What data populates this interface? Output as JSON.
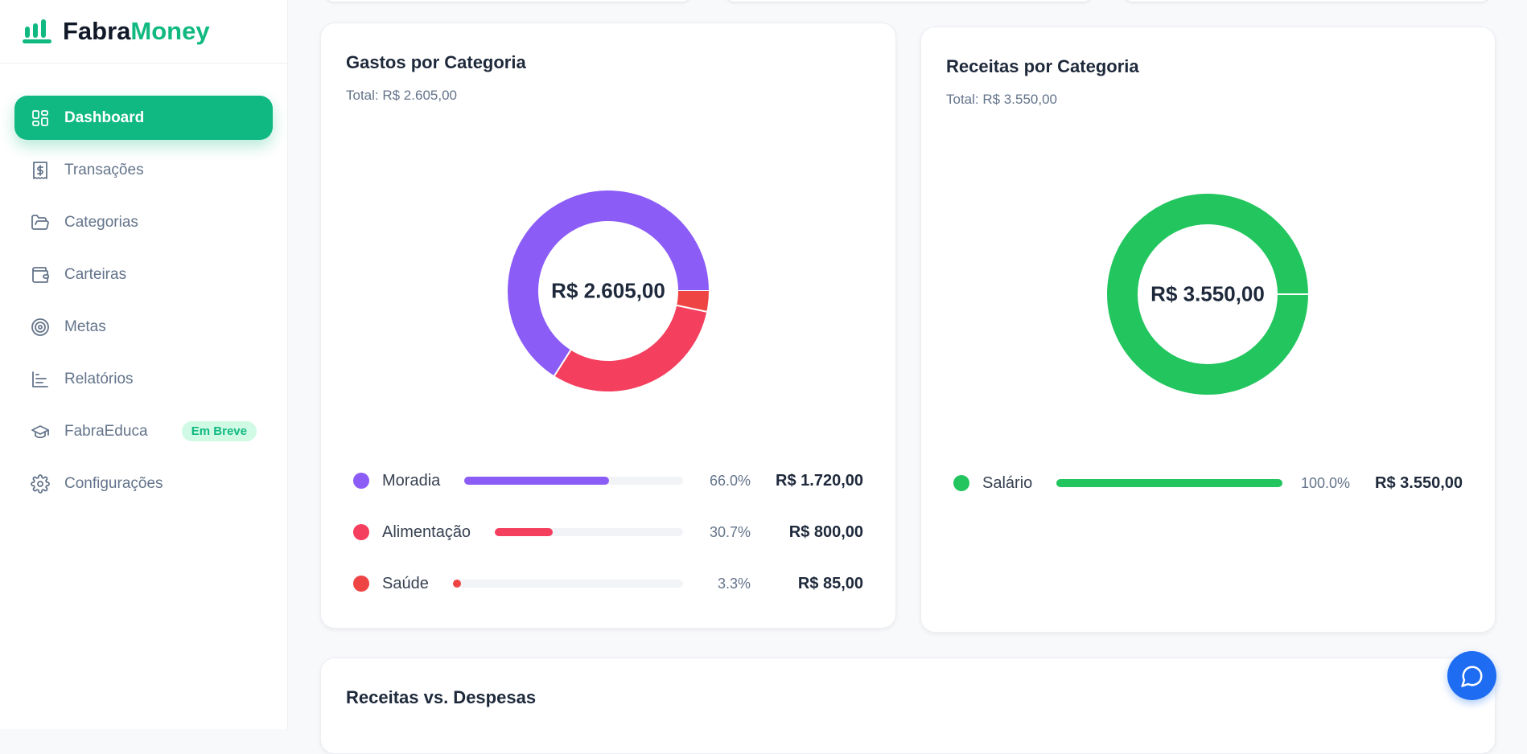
{
  "brand": {
    "part1": "Fabra",
    "part2": "Money",
    "accent": "#10b981"
  },
  "sidebar": {
    "items": [
      {
        "label": "Dashboard",
        "icon": "dashboard-icon",
        "active": true
      },
      {
        "label": "Transações",
        "icon": "receipt-dollar-icon"
      },
      {
        "label": "Categorias",
        "icon": "folder-open-icon"
      },
      {
        "label": "Carteiras",
        "icon": "wallet-icon"
      },
      {
        "label": "Metas",
        "icon": "target-icon"
      },
      {
        "label": "Relatórios",
        "icon": "bar-chart-icon"
      },
      {
        "label": "FabraEduca",
        "icon": "graduation-cap-icon",
        "badge": "Em Breve"
      },
      {
        "label": "Configurações",
        "icon": "gear-icon"
      }
    ]
  },
  "expenses": {
    "title": "Gastos por Categoria",
    "total": "Total: R$ 2.605,00",
    "center": "R$ 2.605,00",
    "items": [
      {
        "label": "Moradia",
        "pct": 66.0,
        "pct_label": "66.0%",
        "amount": "R$ 1.720,00",
        "color": "#8b5cf6"
      },
      {
        "label": "Alimentação",
        "pct": 30.7,
        "pct_label": "30.7%",
        "amount": "R$ 800,00",
        "color": "#f43f5e"
      },
      {
        "label": "Saúde",
        "pct": 3.3,
        "pct_label": "3.3%",
        "amount": "R$ 85,00",
        "color": "#ef4444"
      }
    ]
  },
  "income": {
    "title": "Receitas por Categoria",
    "total": "Total: R$ 3.550,00",
    "center": "R$ 3.550,00",
    "items": [
      {
        "label": "Salário",
        "pct": 100.0,
        "pct_label": "100.0%",
        "amount": "R$ 3.550,00",
        "color": "#22c55e"
      }
    ]
  },
  "bottom": {
    "title": "Receitas vs. Despesas"
  },
  "chat": {
    "icon": "chat-bubble-icon",
    "color": "#1d6cf2"
  }
}
